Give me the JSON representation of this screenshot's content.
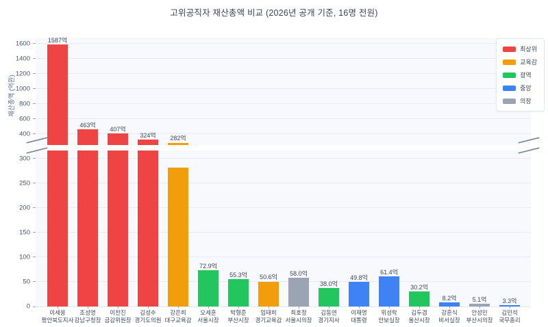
{
  "title": "고위공직자 재산총액 비교 (2026년 공개 기준, 16명 전원)",
  "chart_data": {
    "type": "bar",
    "title": "고위공직자 재산총액 비교 (2026년 공개 기준, 16명 전원)",
    "ylabel": "재산총액 (억원)",
    "unit": "억",
    "grid": true,
    "broken_axis": {
      "top_panel": {
        "ylim": [
          250,
          1680
        ],
        "ticks": [
          400,
          600,
          800,
          1000,
          1200,
          1400,
          1600
        ]
      },
      "bottom_panel": {
        "ylim": [
          0,
          316
        ],
        "ticks": [
          0,
          50,
          100,
          150,
          200,
          250,
          300
        ]
      }
    },
    "legend": {
      "position": "upper right",
      "entries": [
        {
          "label": "최상위",
          "color": "#ef4444"
        },
        {
          "label": "교육감",
          "color": "#f29d0c"
        },
        {
          "label": "광역",
          "color": "#22c55e"
        },
        {
          "label": "중앙",
          "color": "#3e82f5"
        },
        {
          "label": "의장",
          "color": "#9aa4b2"
        }
      ]
    },
    "colors": {
      "최상위": "#ef4444",
      "교육감": "#f29d0c",
      "광역": "#22c55e",
      "중앙": "#3e82f5",
      "의장": "#9aa4b2"
    },
    "bars": [
      {
        "name": "이세웅",
        "role": "평안북도지사",
        "value": 1587,
        "value_label": "1587억",
        "group": "최상위"
      },
      {
        "name": "조성명",
        "role": "강남구청장",
        "value": 463,
        "value_label": "463억",
        "group": "최상위"
      },
      {
        "name": "이찬진",
        "role": "금감위원장",
        "value": 407,
        "value_label": "407억",
        "group": "최상위"
      },
      {
        "name": "김성수",
        "role": "경기도의원",
        "value": 324,
        "value_label": "324억",
        "group": "최상위"
      },
      {
        "name": "강은희",
        "role": "대구교육감",
        "value": 282,
        "value_label": "282억",
        "group": "교육감"
      },
      {
        "name": "오세훈",
        "role": "서울시장",
        "value": 72.9,
        "value_label": "72.9억",
        "group": "광역"
      },
      {
        "name": "박형준",
        "role": "부산시장",
        "value": 55.3,
        "value_label": "55.3억",
        "group": "광역"
      },
      {
        "name": "임태희",
        "role": "경기교육감",
        "value": 50.6,
        "value_label": "50.6억",
        "group": "교육감"
      },
      {
        "name": "최호정",
        "role": "서울시의장",
        "value": 58.0,
        "value_label": "58.0억",
        "group": "의장"
      },
      {
        "name": "김동연",
        "role": "경기지사",
        "value": 38.0,
        "value_label": "38.0억",
        "group": "광역"
      },
      {
        "name": "이재명",
        "role": "대통령",
        "value": 49.8,
        "value_label": "49.8억",
        "group": "중앙"
      },
      {
        "name": "위성락",
        "role": "안보실장",
        "value": 61.4,
        "value_label": "61.4억",
        "group": "중앙"
      },
      {
        "name": "김두겸",
        "role": "울산시장",
        "value": 30.2,
        "value_label": "30.2억",
        "group": "광역"
      },
      {
        "name": "강훈식",
        "role": "비서실장",
        "value": 8.2,
        "value_label": "8.2억",
        "group": "중앙"
      },
      {
        "name": "안성민",
        "role": "부산시의장",
        "value": 5.1,
        "value_label": "5.1억",
        "group": "의장"
      },
      {
        "name": "김민석",
        "role": "국무총리",
        "value": 3.3,
        "value_label": "3.3억",
        "group": "중앙"
      }
    ]
  }
}
